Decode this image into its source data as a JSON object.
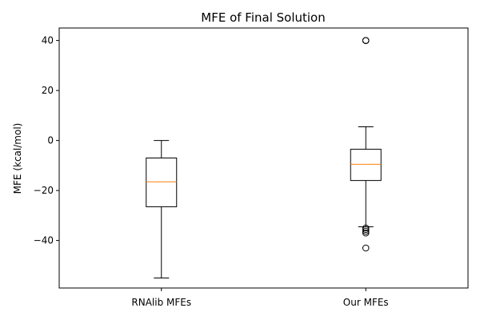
{
  "chart_data": {
    "type": "box",
    "title": "MFE of Final Solution",
    "xlabel": "",
    "ylabel": "MFE (kcal/mol)",
    "ylim": [
      -59,
      45
    ],
    "y_ticks": [
      40,
      20,
      0,
      -20,
      -40
    ],
    "y_tick_labels": [
      "40",
      "20",
      "0",
      "−20",
      "−40"
    ],
    "categories": [
      "RNAlib MFEs",
      "Our MFEs"
    ],
    "boxes": [
      {
        "label": "RNAlib MFEs",
        "whisker_low": -55,
        "q1": -26.5,
        "median": -16.5,
        "q3": -7,
        "whisker_high": 0,
        "outliers": []
      },
      {
        "label": "Our MFEs",
        "whisker_low": -34.5,
        "q1": -16,
        "median": -9.5,
        "q3": -3.5,
        "whisker_high": 5.5,
        "outliers": [
          -43,
          -37,
          -36.3,
          -35.6,
          -35,
          40,
          40,
          40
        ]
      }
    ],
    "colors": {
      "median": "#ff7f0e",
      "box": "#000000"
    },
    "grid": false
  }
}
